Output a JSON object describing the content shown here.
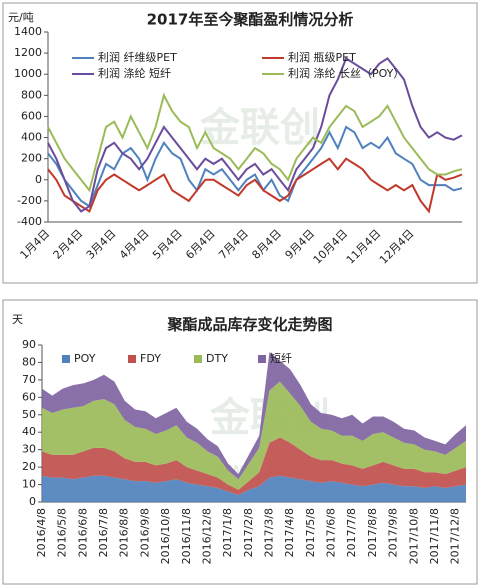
{
  "chart_data": [
    {
      "type": "line",
      "title": "2017年至今聚酯盈利情况分析",
      "y_label": "元/吨",
      "watermark": "金联创",
      "categories": [
        "1月4日",
        null,
        null,
        null,
        "2月4日",
        null,
        null,
        null,
        "3月4日",
        null,
        null,
        null,
        "4月4日",
        null,
        null,
        null,
        "5月4日",
        null,
        null,
        null,
        "6月4日",
        null,
        null,
        null,
        "7月4日",
        null,
        null,
        null,
        "8月4日",
        null,
        null,
        null,
        "9月4日",
        null,
        null,
        null,
        "10月4日",
        null,
        null,
        null,
        "11月4日",
        null,
        null,
        null,
        "12月4日",
        null,
        null,
        null,
        null,
        null,
        null
      ],
      "ylim": [
        -400,
        1400
      ],
      "yticks": [
        -400,
        -200,
        0,
        200,
        400,
        600,
        800,
        1000,
        1200,
        1400
      ],
      "series": [
        {
          "name": "利润 纤维级PET",
          "color": "#4f81bd",
          "values": [
            250,
            150,
            0,
            -100,
            -200,
            -250,
            -50,
            150,
            100,
            250,
            300,
            200,
            0,
            200,
            350,
            250,
            200,
            0,
            -100,
            100,
            50,
            100,
            0,
            -100,
            0,
            50,
            -100,
            0,
            -150,
            -200,
            0,
            100,
            200,
            300,
            450,
            300,
            500,
            450,
            300,
            350,
            300,
            400,
            250,
            200,
            150,
            0,
            -50,
            -50,
            -50,
            -100,
            -80
          ]
        },
        {
          "name": "利润 瓶级PET",
          "color": "#c0392b",
          "values": [
            100,
            0,
            -150,
            -200,
            -250,
            -300,
            -100,
            0,
            50,
            0,
            -50,
            -100,
            -50,
            0,
            50,
            -100,
            -150,
            -200,
            -100,
            0,
            0,
            -50,
            -100,
            -150,
            -50,
            0,
            -100,
            -150,
            -200,
            -150,
            0,
            50,
            100,
            150,
            200,
            100,
            200,
            150,
            100,
            0,
            -50,
            -100,
            -50,
            -100,
            -50,
            -200,
            -300,
            50,
            0,
            20,
            50
          ]
        },
        {
          "name": "利润 涤纶 短纤",
          "color": "#6a4c9c",
          "values": [
            350,
            200,
            0,
            -200,
            -300,
            -250,
            100,
            300,
            350,
            250,
            200,
            100,
            200,
            350,
            500,
            400,
            300,
            200,
            100,
            200,
            150,
            200,
            100,
            0,
            100,
            150,
            50,
            100,
            0,
            -100,
            100,
            200,
            300,
            500,
            800,
            950,
            1150,
            1100,
            1050,
            1000,
            1100,
            1150,
            1050,
            950,
            700,
            500,
            400,
            450,
            400,
            380,
            420
          ]
        },
        {
          "name": "利润 涤纶 长丝（POY）",
          "color": "#9bbb59",
          "values": [
            500,
            350,
            200,
            100,
            0,
            -100,
            200,
            500,
            550,
            400,
            600,
            450,
            300,
            500,
            800,
            650,
            550,
            500,
            300,
            450,
            300,
            250,
            200,
            100,
            200,
            300,
            250,
            150,
            100,
            0,
            200,
            300,
            400,
            350,
            500,
            600,
            700,
            650,
            500,
            550,
            600,
            700,
            550,
            400,
            300,
            200,
            100,
            50,
            50,
            80,
            100
          ]
        }
      ]
    },
    {
      "type": "stacked_area",
      "title": "聚酯成品库存变化走势图",
      "y_label": "天",
      "watermark": "金联创",
      "watermark_url": "www.315i.com",
      "categories": [
        "2016/4/8",
        null,
        "2016/5/8",
        null,
        "2016/6/8",
        null,
        "2016/7/8",
        null,
        "2016/8/8",
        null,
        "2016/9/8",
        null,
        "2016/10/8",
        null,
        "2016/11/8",
        null,
        "2016/12/8",
        null,
        "2017/1/8",
        null,
        "2017/2/8",
        null,
        "2017/3/8",
        null,
        "2017/4/8",
        null,
        "2017/5/8",
        null,
        "2017/6/8",
        null,
        "2017/7/8",
        null,
        "2017/8/8",
        null,
        "2017/9/8",
        null,
        "2017/10/8",
        null,
        "2017/11/8",
        null,
        "2017/12/8",
        null
      ],
      "ylim": [
        0,
        90
      ],
      "yticks": [
        0,
        10,
        20,
        30,
        40,
        50,
        60,
        70,
        80,
        90
      ],
      "series": [
        {
          "name": "POY",
          "color": "#4f81bd",
          "values": [
            15,
            14,
            14,
            13,
            14,
            15,
            15,
            14,
            13,
            12,
            12,
            11,
            12,
            13,
            11,
            10,
            9,
            8,
            6,
            4,
            7,
            9,
            14,
            15,
            14,
            13,
            12,
            11,
            12,
            11,
            10,
            9,
            10,
            11,
            10,
            9,
            9,
            8,
            9,
            8,
            9,
            10
          ]
        },
        {
          "name": "FDY",
          "color": "#c0504d",
          "values": [
            14,
            13,
            13,
            14,
            15,
            16,
            16,
            15,
            12,
            11,
            11,
            10,
            10,
            11,
            9,
            8,
            7,
            6,
            4,
            3,
            5,
            8,
            20,
            22,
            20,
            17,
            14,
            13,
            12,
            11,
            11,
            10,
            11,
            12,
            11,
            10,
            10,
            9,
            8,
            8,
            9,
            10
          ]
        },
        {
          "name": "DTY",
          "color": "#9bbb59",
          "values": [
            25,
            24,
            26,
            27,
            26,
            27,
            28,
            27,
            22,
            20,
            19,
            18,
            19,
            20,
            17,
            16,
            13,
            12,
            8,
            6,
            10,
            14,
            30,
            32,
            28,
            25,
            20,
            18,
            17,
            16,
            17,
            16,
            18,
            17,
            16,
            15,
            14,
            13,
            12,
            11,
            13,
            15
          ]
        },
        {
          "name": "短纤",
          "color": "#8064a2",
          "values": [
            11,
            10,
            12,
            13,
            13,
            12,
            14,
            13,
            11,
            10,
            10,
            9,
            10,
            10,
            9,
            8,
            7,
            6,
            4,
            3,
            5,
            7,
            22,
            12,
            14,
            12,
            10,
            9,
            9,
            10,
            12,
            10,
            10,
            9,
            9,
            8,
            8,
            7,
            6,
            6,
            8,
            9
          ]
        }
      ]
    }
  ]
}
